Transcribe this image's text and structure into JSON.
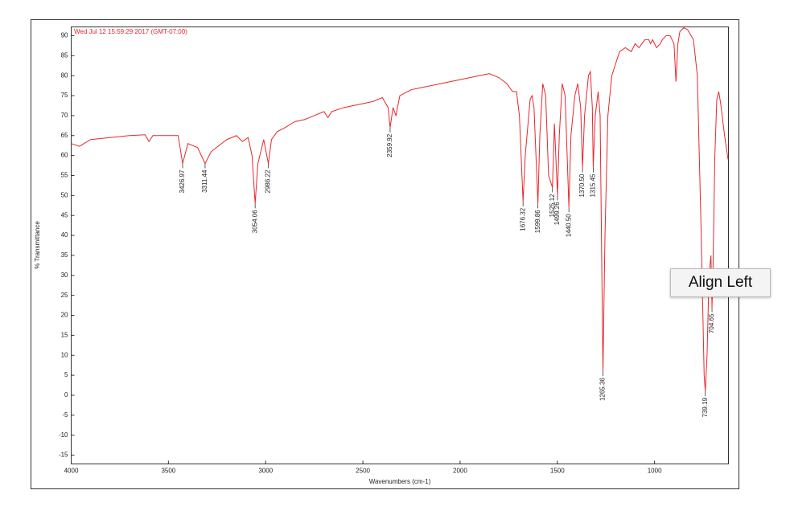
{
  "chart_data": {
    "type": "line",
    "subtitle": "Wed Jul 12 15:59:29 2017 (GMT-07:00)",
    "x_label": "Wavenumbers (cm-1)",
    "y_label": "% Transmittance",
    "xlim": [
      4000,
      620
    ],
    "ylim": [
      -17.2,
      92.2
    ],
    "xticks": [
      4000,
      3500,
      3000,
      2500,
      2000,
      1500,
      1000
    ],
    "yticks": [
      -15,
      -10,
      -5,
      0,
      5,
      10,
      15,
      20,
      25,
      30,
      35,
      40,
      45,
      50,
      55,
      60,
      65,
      70,
      75,
      80,
      85,
      90
    ],
    "x": [
      4000,
      3958,
      3900,
      3800,
      3700,
      3620,
      3600,
      3580,
      3450,
      3426.97,
      3400,
      3350,
      3311.44,
      3280,
      3200,
      3150,
      3120,
      3090,
      3070,
      3054.06,
      3040,
      3010,
      2986.22,
      2970,
      2940,
      2900,
      2850,
      2800,
      2700,
      2680,
      2660,
      2600,
      2500,
      2450,
      2400,
      2370,
      2359.92,
      2345,
      2330,
      2310,
      2250,
      2200,
      2100,
      2000,
      1950,
      1900,
      1850,
      1800,
      1760,
      1730,
      1710,
      1695,
      1676.32,
      1665,
      1640,
      1630,
      1620,
      1599.86,
      1590,
      1575,
      1560,
      1545,
      1525.12,
      1515,
      1499.26,
      1490,
      1475,
      1460,
      1440.5,
      1430,
      1410,
      1395,
      1380,
      1370.5,
      1360,
      1340,
      1330,
      1320,
      1315.45,
      1305,
      1290,
      1280,
      1265.36,
      1255,
      1240,
      1220,
      1200,
      1180,
      1150,
      1120,
      1100,
      1080,
      1050,
      1030,
      1020,
      1010,
      990,
      970,
      960,
      940,
      920,
      900,
      890,
      880,
      870,
      850,
      830,
      800,
      780,
      760,
      745,
      739.19,
      730,
      720,
      710,
      704.65,
      700,
      690,
      680,
      670,
      660,
      640,
      622
    ],
    "series": [
      {
        "name": "% Transmittance",
        "color": "#e8262b",
        "values": [
          63,
          62.3,
          64,
          64.5,
          65,
          65.2,
          63.5,
          65,
          65,
          58,
          63,
          62,
          58,
          61,
          64,
          65,
          63.5,
          64.5,
          60,
          48,
          58,
          64,
          58,
          64,
          66,
          67,
          68.5,
          69,
          71,
          69.5,
          71,
          72,
          73,
          73.5,
          74.5,
          72,
          67,
          72,
          70,
          75,
          76.5,
          77,
          78,
          79,
          79.5,
          80,
          80.5,
          79.5,
          78,
          76,
          76,
          70,
          48.5,
          60,
          74,
          75,
          72,
          48,
          65,
          78,
          75,
          55,
          52,
          68,
          50,
          65,
          78,
          75,
          47,
          65,
          75,
          78,
          72,
          57,
          70,
          80,
          81,
          72,
          57,
          70,
          76,
          70,
          6,
          40,
          70,
          80,
          83,
          86,
          87,
          86,
          88,
          87,
          89,
          89,
          88,
          89,
          87,
          88,
          89,
          90,
          90,
          88,
          78.5,
          88,
          91,
          92,
          91.5,
          89,
          80,
          40,
          5,
          1,
          10,
          30,
          35,
          22,
          30,
          60,
          74,
          76,
          73,
          65,
          59
        ]
      }
    ],
    "peaks": [
      {
        "x": 3426.97,
        "y": 58,
        "label": "3426.97"
      },
      {
        "x": 3311.44,
        "y": 58,
        "label": "3311.44"
      },
      {
        "x": 3054.06,
        "y": 48,
        "label": "3054.06"
      },
      {
        "x": 2986.22,
        "y": 58,
        "label": "2986.22"
      },
      {
        "x": 2359.92,
        "y": 67,
        "label": "2359.92"
      },
      {
        "x": 1676.32,
        "y": 48.5,
        "label": "1676.32"
      },
      {
        "x": 1599.86,
        "y": 48,
        "label": "1599.86"
      },
      {
        "x": 1525.12,
        "y": 52,
        "label": "1525.12"
      },
      {
        "x": 1499.26,
        "y": 50,
        "label": "1499.26"
      },
      {
        "x": 1440.5,
        "y": 47,
        "label": "1440.50"
      },
      {
        "x": 1370.5,
        "y": 57,
        "label": "1370.50"
      },
      {
        "x": 1315.45,
        "y": 57,
        "label": "1315.45"
      },
      {
        "x": 1265.36,
        "y": 6,
        "label": "1265.36"
      },
      {
        "x": 739.19,
        "y": 1,
        "label": "739.19"
      },
      {
        "x": 704.65,
        "y": 22,
        "label": "704.65"
      }
    ]
  },
  "tooltip": "Align Left"
}
